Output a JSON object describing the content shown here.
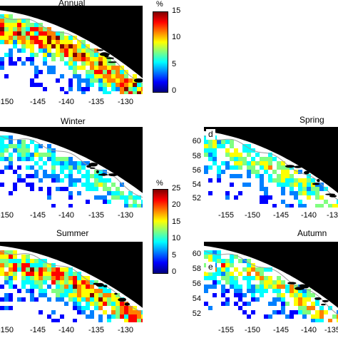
{
  "colormap": [
    "#00007f",
    "#0000ff",
    "#0080ff",
    "#00ffff",
    "#80ff80",
    "#ffff00",
    "#ff8000",
    "#ff0000",
    "#7f0000"
  ],
  "colors": {
    "land": "#000000",
    "water": "#ffffff",
    "contour": "#9a9a9a"
  },
  "colorbars": [
    {
      "unit": "%",
      "ticks": [
        "15",
        "10",
        "5",
        "0"
      ]
    },
    {
      "unit": "%",
      "ticks": [
        "25",
        "20",
        "15",
        "10",
        "5",
        "0"
      ]
    }
  ],
  "panels": [
    {
      "id": "annual",
      "title": "Annual",
      "letter": "",
      "x_ticks": [
        "-150",
        "-145",
        "-140",
        "-135",
        "-130"
      ],
      "y_ticks": []
    },
    {
      "id": "winter",
      "title": "Winter",
      "letter": "",
      "x_ticks": [
        "-150",
        "-145",
        "-140",
        "-135",
        "-130"
      ],
      "y_ticks": []
    },
    {
      "id": "spring",
      "title": "Spring",
      "letter": "d",
      "x_ticks": [
        "-155",
        "-150",
        "-145",
        "-140",
        "-13"
      ],
      "y_ticks": [
        "60",
        "58",
        "56",
        "54",
        "52"
      ]
    },
    {
      "id": "summer",
      "title": "Summer",
      "letter": "",
      "x_ticks": [
        "-150",
        "-145",
        "-140",
        "-135",
        "-130"
      ],
      "y_ticks": []
    },
    {
      "id": "autumn",
      "title": "Autumn",
      "letter": "e",
      "x_ticks": [
        "-155",
        "-150",
        "-145",
        "-140",
        "-135"
      ],
      "y_ticks": [
        "60",
        "58",
        "56",
        "54",
        "52"
      ]
    }
  ]
}
